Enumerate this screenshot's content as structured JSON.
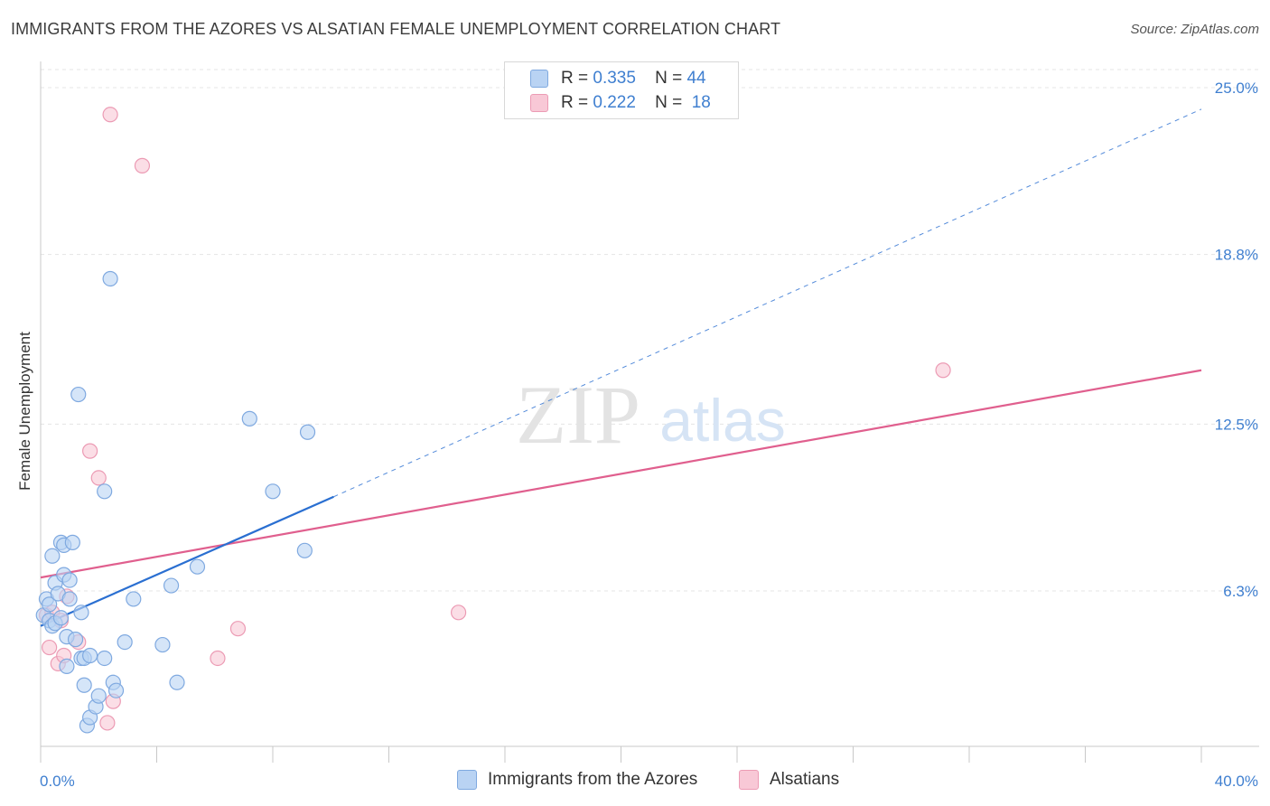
{
  "title": "IMMIGRANTS FROM THE AZORES VS ALSATIAN FEMALE UNEMPLOYMENT CORRELATION CHART",
  "source": "Source: ZipAtlas.com",
  "watermark": {
    "zip": "ZIP",
    "atlas": "atlas"
  },
  "legend_top": {
    "rows": [
      {
        "r_label": "R =",
        "r_value": "0.335",
        "n_label": "N =",
        "n_value": "44"
      },
      {
        "r_label": "R =",
        "r_value": "0.222",
        "n_label": "N =",
        "n_value": "18"
      }
    ]
  },
  "colors": {
    "blue_fill": "#b9d3f3",
    "blue_stroke": "#7fa9e0",
    "blue_line": "#2a6fd1",
    "pink_fill": "#f8c8d6",
    "pink_stroke": "#ec9bb4",
    "pink_line": "#e05f8e",
    "tick_text": "#3f7fd0"
  },
  "chart_data": {
    "type": "scatter",
    "title": "IMMIGRANTS FROM THE AZORES VS ALSATIAN FEMALE UNEMPLOYMENT CORRELATION CHART",
    "xlabel": "",
    "ylabel": "Female Unemployment",
    "xlim": [
      0,
      40
    ],
    "ylim": [
      0,
      26.2
    ],
    "x_tick_labels": [
      "0.0%",
      "40.0%"
    ],
    "y_ticks": [
      6.3,
      12.5,
      18.8,
      25.0
    ],
    "y_tick_labels": [
      "6.3%",
      "12.5%",
      "18.8%",
      "25.0%"
    ],
    "grid": true,
    "legend_position": "top-center",
    "series": [
      {
        "name": "Immigrants from the Azores",
        "r": 0.335,
        "n": 44,
        "points": [
          [
            0.1,
            5.4
          ],
          [
            0.2,
            6.0
          ],
          [
            0.3,
            5.8
          ],
          [
            0.3,
            5.2
          ],
          [
            0.4,
            5.0
          ],
          [
            0.4,
            7.6
          ],
          [
            0.5,
            6.6
          ],
          [
            0.5,
            5.1
          ],
          [
            0.6,
            6.2
          ],
          [
            0.7,
            5.3
          ],
          [
            0.7,
            8.1
          ],
          [
            0.8,
            6.9
          ],
          [
            0.8,
            8.0
          ],
          [
            0.9,
            4.6
          ],
          [
            0.9,
            3.5
          ],
          [
            1.0,
            6.7
          ],
          [
            1.0,
            6.0
          ],
          [
            1.1,
            8.1
          ],
          [
            1.2,
            4.5
          ],
          [
            1.3,
            13.6
          ],
          [
            1.4,
            5.5
          ],
          [
            1.4,
            3.8
          ],
          [
            1.5,
            3.8
          ],
          [
            1.5,
            2.8
          ],
          [
            1.6,
            1.3
          ],
          [
            1.7,
            1.6
          ],
          [
            1.7,
            3.9
          ],
          [
            1.9,
            2.0
          ],
          [
            2.0,
            2.4
          ],
          [
            2.2,
            10.0
          ],
          [
            2.2,
            3.8
          ],
          [
            2.4,
            17.9
          ],
          [
            2.5,
            2.9
          ],
          [
            2.6,
            2.6
          ],
          [
            2.9,
            4.4
          ],
          [
            3.2,
            6.0
          ],
          [
            4.2,
            4.3
          ],
          [
            4.5,
            6.5
          ],
          [
            4.7,
            2.9
          ],
          [
            5.4,
            7.2
          ],
          [
            7.2,
            12.7
          ],
          [
            8.0,
            10.0
          ],
          [
            9.1,
            7.8
          ],
          [
            9.2,
            12.2
          ]
        ],
        "trend": {
          "x0": 0,
          "y0": 5.0,
          "x1": 10.1,
          "y1": 9.8,
          "extended_x1": 40,
          "extended_y1": 24.2
        }
      },
      {
        "name": "Alsatians",
        "r": 0.222,
        "n": 18,
        "points": [
          [
            0.2,
            5.4
          ],
          [
            0.3,
            4.2
          ],
          [
            0.4,
            5.5
          ],
          [
            0.6,
            3.6
          ],
          [
            0.7,
            5.2
          ],
          [
            0.8,
            3.9
          ],
          [
            0.9,
            6.1
          ],
          [
            1.3,
            4.4
          ],
          [
            1.7,
            11.5
          ],
          [
            2.0,
            10.5
          ],
          [
            2.3,
            1.4
          ],
          [
            2.5,
            2.2
          ],
          [
            2.4,
            24.0
          ],
          [
            3.5,
            22.1
          ],
          [
            6.1,
            3.8
          ],
          [
            6.8,
            4.9
          ],
          [
            14.4,
            5.5
          ],
          [
            31.1,
            14.5
          ]
        ],
        "trend": {
          "x0": 0,
          "y0": 6.8,
          "x1": 40,
          "y1": 14.5
        }
      }
    ]
  }
}
